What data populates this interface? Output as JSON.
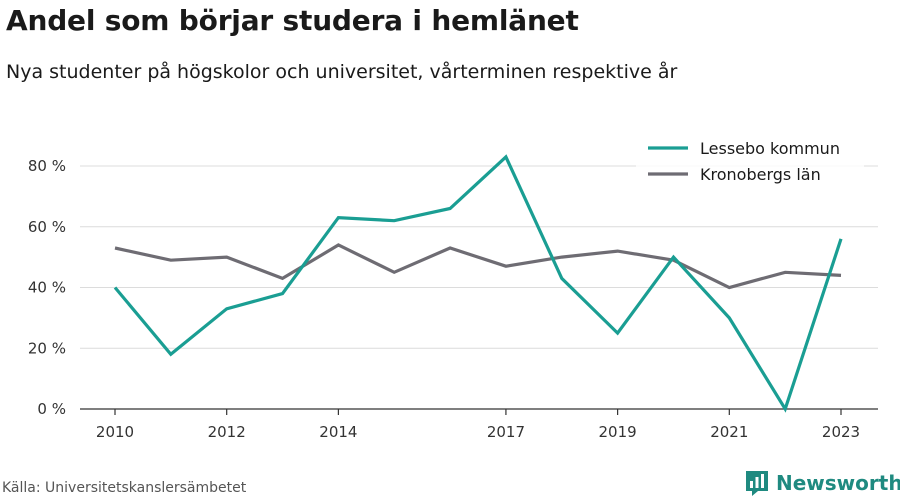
{
  "title": "Andel som börjar studera i hemlänet",
  "subtitle": "Nya studenter på högskolor och universitet, vårterminen respektive år",
  "source": "Källa: Universitetskanslersämbetet",
  "brand": {
    "name": "Newsworthy",
    "icon": "bar-chart-logo-icon",
    "color": "#1f8a80"
  },
  "chart_data": {
    "type": "line",
    "x": [
      2010,
      2011,
      2012,
      2013,
      2014,
      2015,
      2016,
      2017,
      2018,
      2019,
      2020,
      2021,
      2022,
      2023
    ],
    "x_tick_labels": [
      "2010",
      "2012",
      "2014",
      "2017",
      "2019",
      "2021",
      "2023"
    ],
    "y_tick_labels": [
      "0 %",
      "20 %",
      "40 %",
      "60 %",
      "80 %"
    ],
    "ylim": [
      0,
      85
    ],
    "grid": true,
    "legend_position": "top-right",
    "series": [
      {
        "name": "Lessebo kommun",
        "color": "#1a9e93",
        "values": [
          40,
          18,
          33,
          38,
          63,
          62,
          66,
          83,
          43,
          25,
          50,
          30,
          0,
          56
        ]
      },
      {
        "name": "Kronobergs län",
        "color": "#6e6c73",
        "values": [
          53,
          49,
          50,
          43,
          54,
          45,
          53,
          47,
          50,
          52,
          49,
          40,
          45,
          44
        ]
      }
    ]
  }
}
